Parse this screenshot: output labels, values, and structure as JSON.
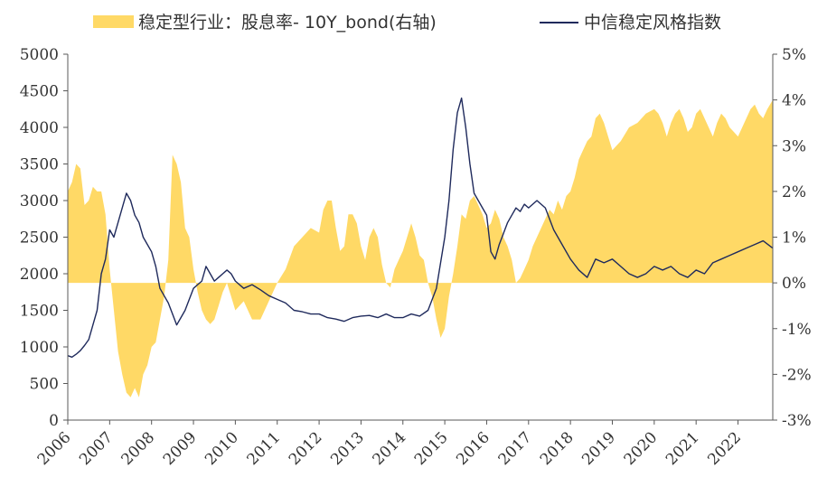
{
  "chart_data": {
    "type": "area+line",
    "legend": {
      "placement": "top",
      "entries": [
        {
          "name": "稳定型行业：股息率- 10Y_bond(右轴)",
          "kind": "area",
          "color": "#FFD966"
        },
        {
          "name": "中信稳定风格指数",
          "kind": "line",
          "color": "#1F2A5C"
        }
      ]
    },
    "x_ticks": [
      "2006",
      "2007",
      "2008",
      "2009",
      "2010",
      "2011",
      "2012",
      "2013",
      "2014",
      "2015",
      "2016",
      "2017",
      "2018",
      "2019",
      "2020",
      "2021",
      "2022"
    ],
    "x_range": [
      2006.0,
      2022.83
    ],
    "y_left": {
      "range": [
        0,
        5000
      ],
      "ticks": [
        "0",
        "500",
        "1000",
        "1500",
        "2000",
        "2500",
        "3000",
        "3500",
        "4000",
        "4500",
        "5000"
      ]
    },
    "y_right": {
      "range": [
        -3,
        5
      ],
      "ticks": [
        "-3%",
        "-2%",
        "-1%",
        "0%",
        "1%",
        "2%",
        "3%",
        "4%",
        "5%"
      ]
    },
    "grid": false,
    "series": [
      {
        "name": "稳定型行业：股息率- 10Y_bond(右轴)",
        "axis": "right",
        "type": "area",
        "x": [
          2006.0,
          2006.1,
          2006.2,
          2006.3,
          2006.4,
          2006.5,
          2006.6,
          2006.7,
          2006.8,
          2006.9,
          2007.0,
          2007.1,
          2007.2,
          2007.3,
          2007.4,
          2007.5,
          2007.6,
          2007.7,
          2007.8,
          2007.9,
          2008.0,
          2008.1,
          2008.2,
          2008.3,
          2008.4,
          2008.5,
          2008.6,
          2008.7,
          2008.8,
          2008.9,
          2009.0,
          2009.1,
          2009.2,
          2009.3,
          2009.4,
          2009.5,
          2009.6,
          2009.7,
          2009.8,
          2009.9,
          2010.0,
          2010.2,
          2010.4,
          2010.6,
          2010.8,
          2011.0,
          2011.2,
          2011.4,
          2011.6,
          2011.8,
          2012.0,
          2012.1,
          2012.2,
          2012.3,
          2012.4,
          2012.5,
          2012.6,
          2012.7,
          2012.8,
          2012.9,
          2013.0,
          2013.1,
          2013.2,
          2013.3,
          2013.4,
          2013.5,
          2013.6,
          2013.7,
          2013.8,
          2013.9,
          2014.0,
          2014.1,
          2014.2,
          2014.3,
          2014.4,
          2014.5,
          2014.6,
          2014.7,
          2014.8,
          2014.9,
          2015.0,
          2015.1,
          2015.2,
          2015.3,
          2015.4,
          2015.5,
          2015.6,
          2015.7,
          2015.8,
          2015.9,
          2016.0,
          2016.1,
          2016.2,
          2016.3,
          2016.4,
          2016.5,
          2016.6,
          2016.7,
          2016.8,
          2016.9,
          2017.0,
          2017.1,
          2017.2,
          2017.3,
          2017.4,
          2017.5,
          2017.6,
          2017.7,
          2017.8,
          2017.9,
          2018.0,
          2018.1,
          2018.2,
          2018.3,
          2018.4,
          2018.5,
          2018.6,
          2018.7,
          2018.8,
          2018.9,
          2019.0,
          2019.2,
          2019.4,
          2019.6,
          2019.8,
          2020.0,
          2020.1,
          2020.2,
          2020.3,
          2020.4,
          2020.5,
          2020.6,
          2020.7,
          2020.8,
          2020.9,
          2021.0,
          2021.1,
          2021.2,
          2021.3,
          2021.4,
          2021.5,
          2021.6,
          2021.7,
          2021.8,
          2021.9,
          2022.0,
          2022.1,
          2022.2,
          2022.3,
          2022.4,
          2022.5,
          2022.6,
          2022.7,
          2022.83
        ],
        "y": [
          2.0,
          2.2,
          2.6,
          2.5,
          1.7,
          1.8,
          2.1,
          2.0,
          2.0,
          1.5,
          0.3,
          -0.6,
          -1.5,
          -2.0,
          -2.4,
          -2.5,
          -2.3,
          -2.5,
          -2.0,
          -1.8,
          -1.4,
          -1.3,
          -0.8,
          -0.3,
          0.5,
          2.8,
          2.6,
          2.2,
          1.2,
          1.0,
          0.3,
          -0.2,
          -0.6,
          -0.8,
          -0.9,
          -0.8,
          -0.5,
          -0.2,
          0.0,
          -0.3,
          -0.6,
          -0.4,
          -0.8,
          -0.8,
          -0.4,
          0.0,
          0.3,
          0.8,
          1.0,
          1.2,
          1.1,
          1.6,
          1.8,
          1.8,
          1.2,
          0.7,
          0.8,
          1.5,
          1.5,
          1.3,
          0.8,
          0.5,
          1.0,
          1.2,
          1.0,
          0.4,
          0.0,
          -0.1,
          0.3,
          0.5,
          0.7,
          1.0,
          1.3,
          1.0,
          0.6,
          0.5,
          0.0,
          -0.3,
          -0.8,
          -1.2,
          -1.0,
          -0.3,
          0.2,
          0.8,
          1.5,
          1.4,
          1.8,
          1.9,
          1.7,
          1.5,
          1.2,
          1.3,
          1.6,
          1.4,
          1.0,
          0.8,
          0.5,
          0.0,
          0.1,
          0.3,
          0.5,
          0.8,
          1.0,
          1.2,
          1.4,
          1.6,
          1.5,
          1.8,
          1.6,
          1.9,
          2.0,
          2.3,
          2.7,
          2.9,
          3.1,
          3.2,
          3.6,
          3.7,
          3.5,
          3.2,
          2.9,
          3.1,
          3.4,
          3.5,
          3.7,
          3.8,
          3.7,
          3.5,
          3.2,
          3.5,
          3.7,
          3.8,
          3.6,
          3.3,
          3.4,
          3.7,
          3.8,
          3.6,
          3.4,
          3.2,
          3.5,
          3.7,
          3.6,
          3.4,
          3.3,
          3.2,
          3.4,
          3.6,
          3.8,
          3.9,
          3.7,
          3.6,
          3.8,
          4.0
        ],
        "color": "#FFD966"
      },
      {
        "name": "中信稳定风格指数",
        "axis": "left",
        "type": "line",
        "x": [
          2006.0,
          2006.1,
          2006.2,
          2006.3,
          2006.4,
          2006.5,
          2006.6,
          2006.7,
          2006.8,
          2006.9,
          2007.0,
          2007.1,
          2007.2,
          2007.3,
          2007.4,
          2007.5,
          2007.6,
          2007.7,
          2007.8,
          2007.9,
          2008.0,
          2008.1,
          2008.2,
          2008.3,
          2008.4,
          2008.5,
          2008.6,
          2008.7,
          2008.8,
          2008.9,
          2009.0,
          2009.1,
          2009.2,
          2009.3,
          2009.4,
          2009.5,
          2009.6,
          2009.7,
          2009.8,
          2009.9,
          2010.0,
          2010.2,
          2010.4,
          2010.6,
          2010.8,
          2011.0,
          2011.2,
          2011.4,
          2011.6,
          2011.8,
          2012.0,
          2012.2,
          2012.4,
          2012.6,
          2012.8,
          2013.0,
          2013.2,
          2013.4,
          2013.6,
          2013.8,
          2014.0,
          2014.2,
          2014.4,
          2014.6,
          2014.8,
          2015.0,
          2015.1,
          2015.2,
          2015.3,
          2015.4,
          2015.5,
          2015.6,
          2015.7,
          2015.8,
          2015.9,
          2016.0,
          2016.1,
          2016.2,
          2016.3,
          2016.4,
          2016.5,
          2016.6,
          2016.7,
          2016.8,
          2016.9,
          2017.0,
          2017.2,
          2017.4,
          2017.6,
          2017.8,
          2018.0,
          2018.2,
          2018.4,
          2018.6,
          2018.8,
          2019.0,
          2019.2,
          2019.4,
          2019.6,
          2019.8,
          2020.0,
          2020.2,
          2020.4,
          2020.6,
          2020.8,
          2021.0,
          2021.2,
          2021.4,
          2021.6,
          2021.8,
          2022.0,
          2022.2,
          2022.4,
          2022.6,
          2022.83
        ],
        "y": [
          880,
          860,
          900,
          950,
          1020,
          1100,
          1300,
          1500,
          2000,
          2200,
          2600,
          2500,
          2700,
          2900,
          3100,
          3000,
          2800,
          2700,
          2500,
          2400,
          2300,
          2100,
          1800,
          1700,
          1600,
          1450,
          1300,
          1400,
          1500,
          1650,
          1800,
          1850,
          1900,
          2100,
          2000,
          1900,
          1950,
          2000,
          2050,
          2000,
          1900,
          1800,
          1850,
          1780,
          1700,
          1650,
          1600,
          1500,
          1480,
          1450,
          1450,
          1400,
          1380,
          1350,
          1400,
          1420,
          1430,
          1400,
          1450,
          1400,
          1400,
          1450,
          1420,
          1500,
          1800,
          2500,
          3000,
          3700,
          4200,
          4400,
          4000,
          3500,
          3100,
          3000,
          2900,
          2800,
          2300,
          2200,
          2400,
          2550,
          2700,
          2800,
          2900,
          2850,
          2950,
          2900,
          3000,
          2900,
          2600,
          2400,
          2200,
          2050,
          1950,
          2200,
          2150,
          2200,
          2100,
          2000,
          1950,
          2000,
          2100,
          2050,
          2100,
          2000,
          1950,
          2050,
          2000,
          2150,
          2200,
          2250,
          2300,
          2350,
          2400,
          2450,
          2350
        ]
      }
    ]
  }
}
